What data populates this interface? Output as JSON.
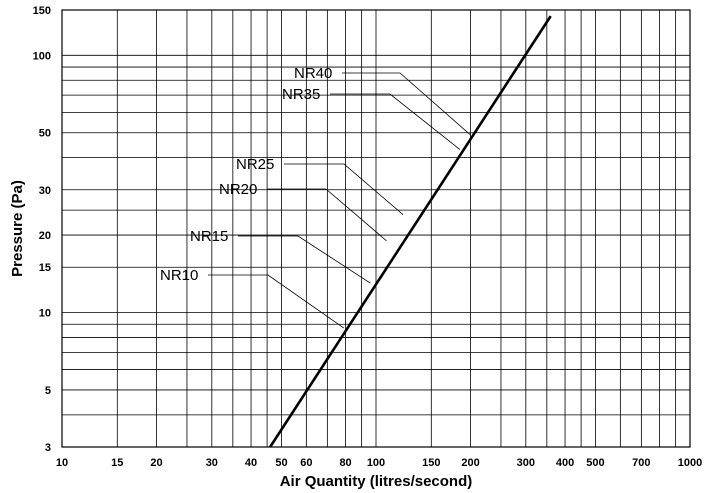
{
  "chart_data": {
    "type": "line",
    "title": "",
    "xlabel": "Air Quantity (litres/second)",
    "ylabel": "Pressure (Pa)",
    "x_scale": "log",
    "y_scale": "log",
    "xlim": [
      10,
      1000
    ],
    "ylim": [
      3,
      150
    ],
    "grid": true,
    "legend": "none",
    "x_ticks": [
      10,
      15,
      20,
      30,
      40,
      50,
      60,
      80,
      100,
      150,
      200,
      300,
      400,
      500,
      700,
      1000
    ],
    "x_tick_labels": [
      "10",
      "15",
      "20",
      "30",
      "40",
      "50",
      "60",
      "80",
      "100",
      "150",
      "200",
      "300",
      "400",
      "500",
      "700",
      "1000"
    ],
    "x_gridlines": [
      10,
      15,
      20,
      25,
      30,
      35,
      40,
      45,
      50,
      60,
      70,
      80,
      90,
      100,
      150,
      200,
      250,
      300,
      350,
      400,
      450,
      500,
      600,
      700,
      800,
      900,
      1000
    ],
    "y_ticks": [
      3,
      5,
      10,
      15,
      20,
      30,
      50,
      100,
      150
    ],
    "y_tick_labels": [
      "3",
      "5",
      "10",
      "15",
      "20",
      "30",
      "50",
      "100",
      "150"
    ],
    "y_gridlines": [
      3,
      4,
      5,
      6,
      7,
      8,
      9,
      10,
      15,
      20,
      25,
      30,
      40,
      50,
      60,
      70,
      80,
      90,
      100,
      150
    ],
    "series": [
      {
        "name": "",
        "x": [
          46,
          360
        ],
        "y": [
          3,
          142
        ]
      }
    ],
    "annotations": [
      {
        "text": "NR40",
        "x": 200,
        "y": 49
      },
      {
        "text": "NR35",
        "x": 185,
        "y": 43
      },
      {
        "text": "NR25",
        "x": 122,
        "y": 24
      },
      {
        "text": "NR20",
        "x": 108,
        "y": 19
      },
      {
        "text": "NR15",
        "x": 96,
        "y": 13
      },
      {
        "text": "NR10",
        "x": 79,
        "y": 8.7
      }
    ]
  }
}
